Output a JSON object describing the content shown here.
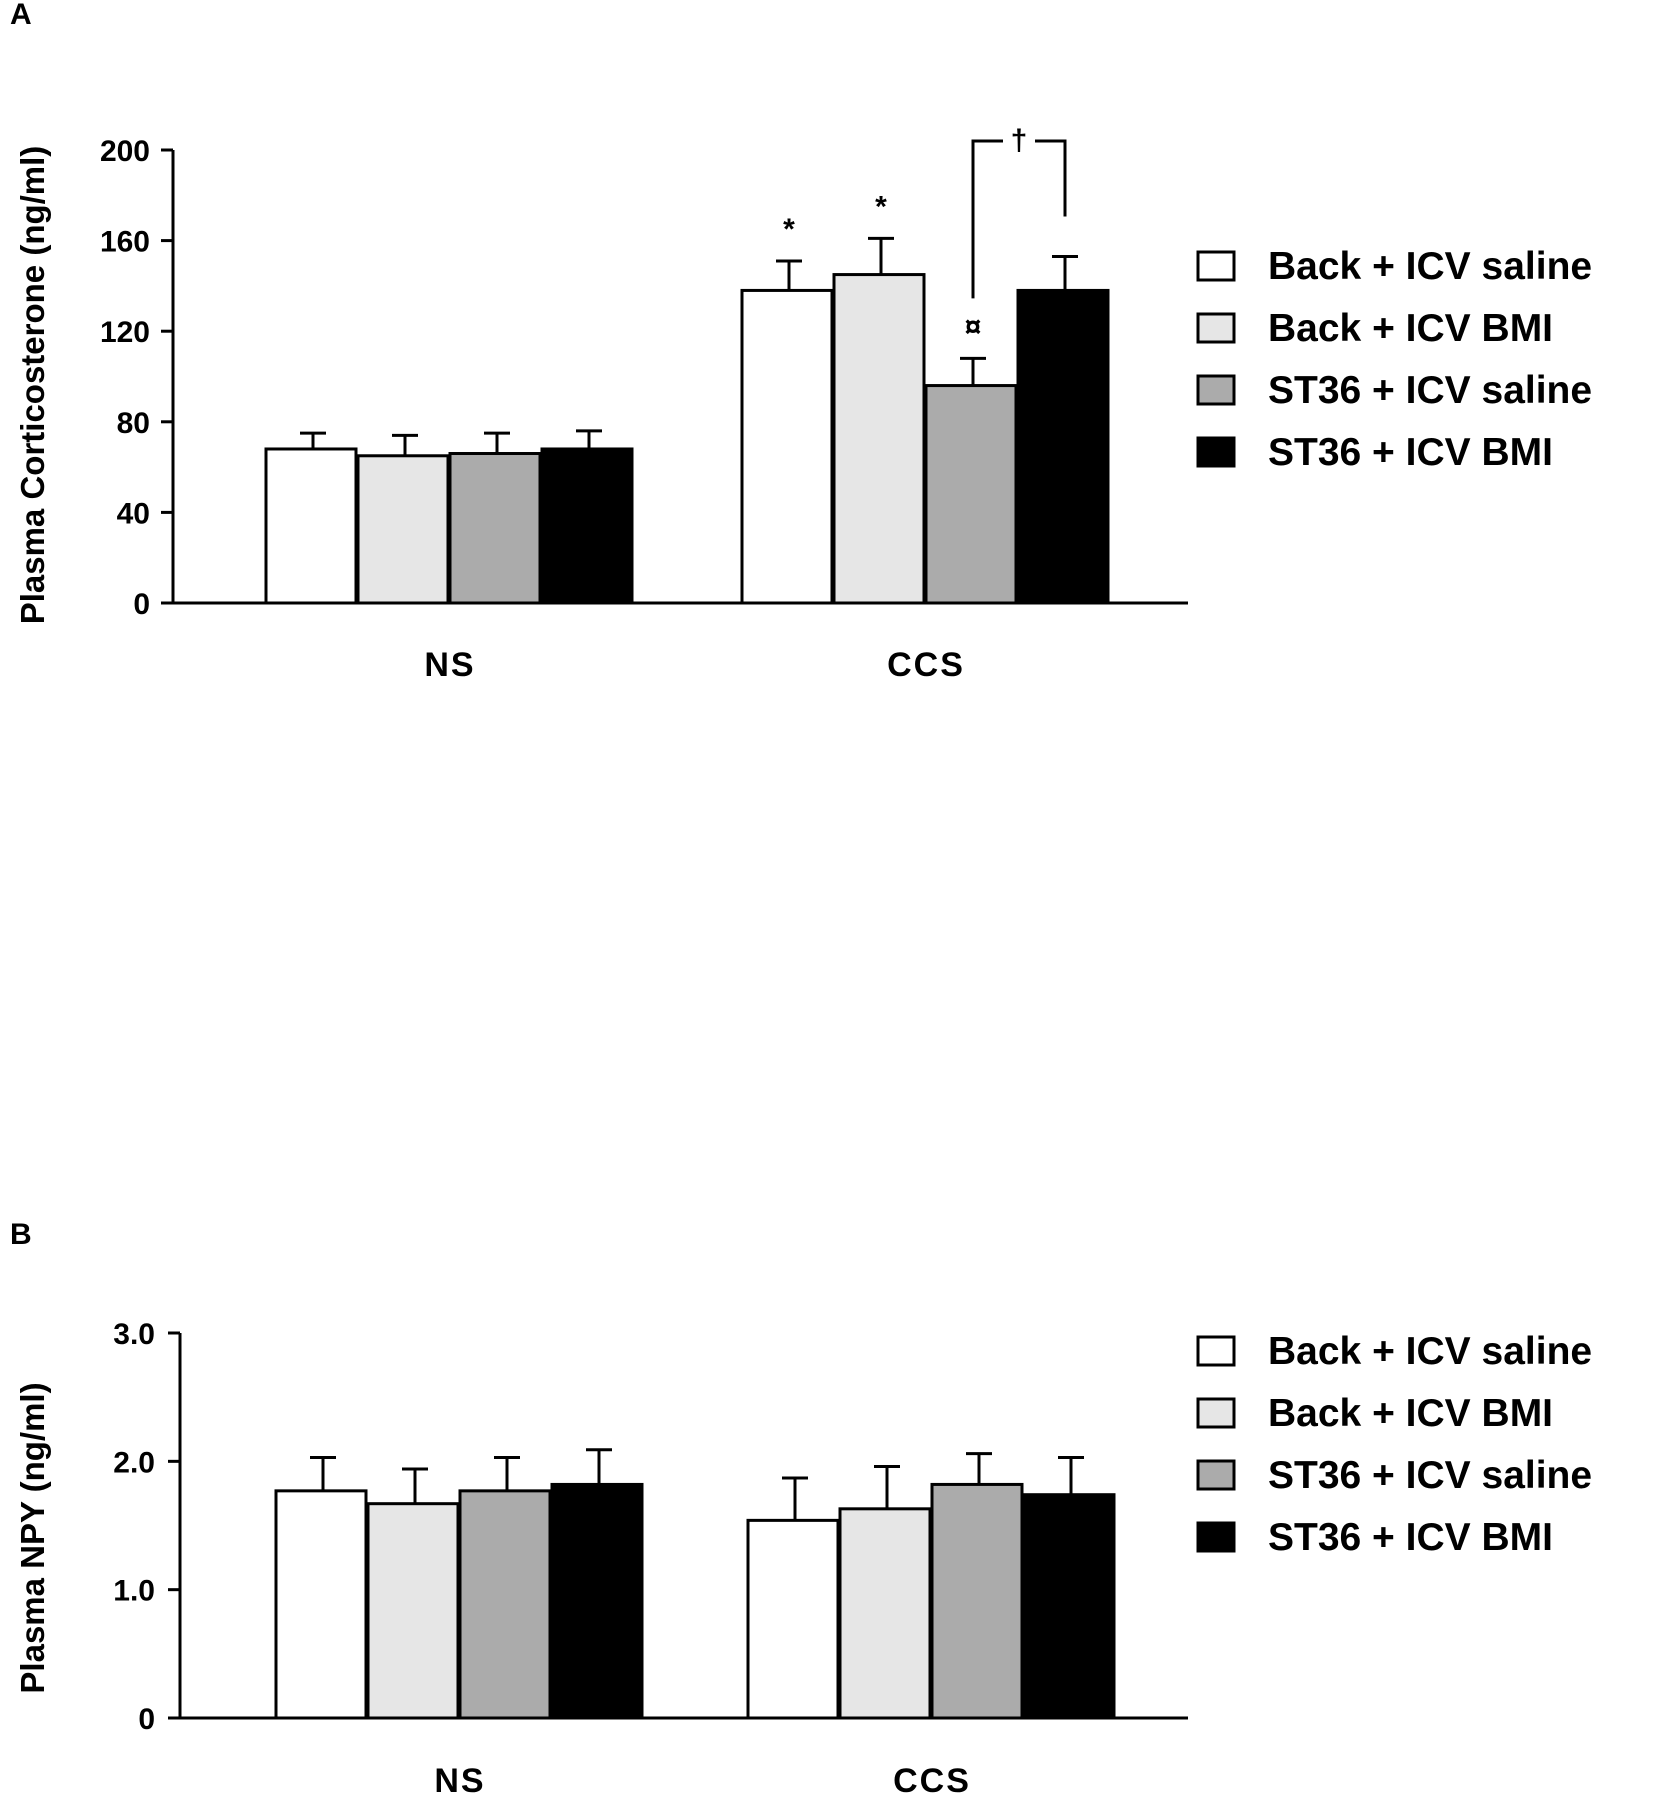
{
  "chart_data": [
    {
      "panel": "A",
      "type": "bar",
      "ylabel": "Plasma Corticosterone (ng/ml)",
      "xlabel": "",
      "categories": [
        "NS",
        "CCS"
      ],
      "yticks": [
        "0",
        "40",
        "80",
        "120",
        "160",
        "200"
      ],
      "ylim": [
        0,
        200
      ],
      "legend_position": "right",
      "series": [
        {
          "name": "Back + ICV saline",
          "color": "#ffffff",
          "values": [
            68,
            138
          ],
          "errors": [
            7,
            13
          ]
        },
        {
          "name": "Back + ICV BMI",
          "color": "#e6e6e6",
          "values": [
            65,
            145
          ],
          "errors": [
            9,
            16
          ]
        },
        {
          "name": "ST36 + ICV saline",
          "color": "#ababab",
          "values": [
            66,
            96
          ],
          "errors": [
            9,
            12
          ]
        },
        {
          "name": "ST36 + ICV BMI",
          "color": "#000000",
          "values": [
            68,
            138
          ],
          "errors": [
            8,
            15
          ]
        }
      ],
      "annotations": [
        {
          "text": "*",
          "category": "CCS",
          "series": 0
        },
        {
          "text": "*",
          "category": "CCS",
          "series": 1
        },
        {
          "text": "¤",
          "category": "CCS",
          "series": 2
        },
        {
          "text": "†",
          "category": "CCS",
          "bracket": [
            2,
            3
          ]
        }
      ]
    },
    {
      "panel": "B",
      "type": "bar",
      "ylabel": "Plasma NPY (ng/ml)",
      "xlabel": "",
      "categories": [
        "NS",
        "CCS"
      ],
      "yticks": [
        "0",
        "1.0",
        "2.0",
        "3.0"
      ],
      "ylim": [
        0,
        3.0
      ],
      "legend_position": "right",
      "series": [
        {
          "name": "Back + ICV saline",
          "color": "#ffffff",
          "values": [
            1.77,
            1.54
          ],
          "errors": [
            0.26,
            0.33
          ]
        },
        {
          "name": "Back + ICV BMI",
          "color": "#e6e6e6",
          "values": [
            1.67,
            1.63
          ],
          "errors": [
            0.27,
            0.33
          ]
        },
        {
          "name": "ST36 + ICV saline",
          "color": "#ababab",
          "values": [
            1.77,
            1.82
          ],
          "errors": [
            0.26,
            0.24
          ]
        },
        {
          "name": "ST36 + ICV BMI",
          "color": "#000000",
          "values": [
            1.82,
            1.74
          ],
          "errors": [
            0.27,
            0.29
          ]
        }
      ],
      "annotations": []
    }
  ]
}
